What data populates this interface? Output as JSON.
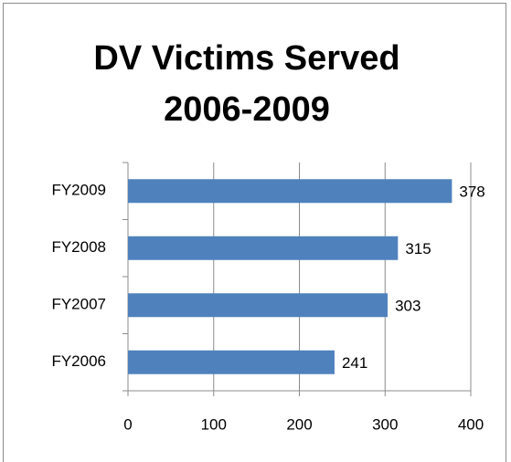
{
  "chart_data": {
    "type": "bar",
    "orientation": "horizontal",
    "title": "DV Victims Served 2006-2009",
    "categories": [
      "FY2009",
      "FY2008",
      "FY2007",
      "FY2006"
    ],
    "values": [
      378,
      315,
      303,
      241
    ],
    "color": "#4f81bd",
    "xlim": [
      0,
      400
    ],
    "xticks": [
      0,
      100,
      200,
      300,
      400
    ],
    "grid": true
  }
}
